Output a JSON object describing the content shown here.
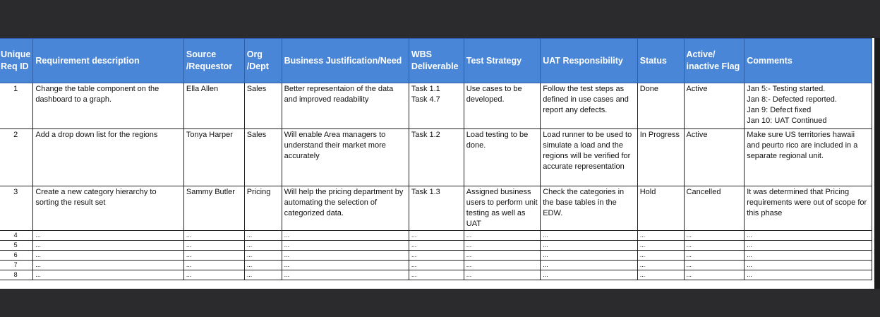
{
  "headers": [
    [
      "Unique",
      "Req ID"
    ],
    [
      "Requirement description"
    ],
    [
      "Source",
      "/Requestor"
    ],
    [
      "Org",
      "/Dept"
    ],
    [
      "Business Justification/Need"
    ],
    [
      "WBS",
      "Deliverable"
    ],
    [
      "Test Strategy"
    ],
    [
      "UAT Responsibility"
    ],
    [
      "Status"
    ],
    [
      "Active/",
      "inactive Flag"
    ],
    [
      "Comments"
    ]
  ],
  "rows": [
    {
      "id": "1",
      "description": "Change the table component on the dashboard to a graph.",
      "source": "Ella Allen",
      "org": "Sales",
      "justification": "Better representaion of the data and improved readability",
      "wbs": [
        "Task 1.1",
        "Task 4.7"
      ],
      "test_strategy": "Use cases to be developed.",
      "uat": "Follow the test steps as defined in use cases and report any defects.",
      "status": "Done",
      "flag": "Active",
      "comments": [
        "Jan 5:- Testing started.",
        "Jan 8:- Defected reported.",
        "Jan 9: Defect fixed",
        "Jan 10: UAT Continued"
      ]
    },
    {
      "id": "2",
      "description": "Add a drop down list for the regions",
      "source": "Tonya Harper",
      "org": "Sales",
      "justification": "Will enable Area managers to understand their market more accurately",
      "wbs": [
        "Task 1.2"
      ],
      "test_strategy": "Load testing to be done.",
      "uat": "Load runner to be used to simulate a load and the regions will be verified for accurate representation",
      "status": "In Progress",
      "flag": "Active",
      "comments": [
        "Make sure US territories hawaii and peurto rico are included in a separate regional unit."
      ]
    },
    {
      "id": "3",
      "description": "Create a new category hierarchy to sorting the result set",
      "source": "Sammy Butler",
      "org": "Pricing",
      "justification": "Will help the pricing department by automating the selection of categorized data.",
      "wbs": [
        "Task 1.3"
      ],
      "test_strategy": "Assigned business users to perform unit testing as well as UAT",
      "uat": "Check the categories in the base tables in the EDW.",
      "status": "Hold",
      "flag": "Cancelled",
      "comments": [
        "It was determined that Pricing requirements were out of scope for this phase"
      ]
    }
  ],
  "empty_rows": [
    {
      "id": "4",
      "placeholder": "..."
    },
    {
      "id": "5",
      "placeholder": "..."
    },
    {
      "id": "6",
      "placeholder": "..."
    },
    {
      "id": "7",
      "placeholder": "..."
    },
    {
      "id": "8",
      "placeholder": "..."
    }
  ],
  "colors": {
    "header_bg": "#4a86d8",
    "background": "#2b2b2d"
  },
  "icons": {
    "prev": "chevron-left-icon",
    "next": "chevron-right-icon"
  }
}
